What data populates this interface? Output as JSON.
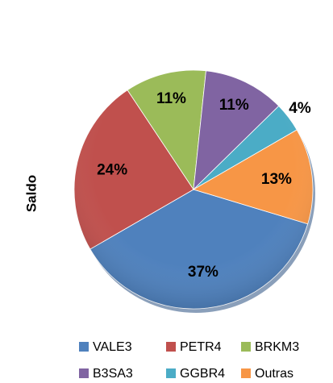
{
  "chart_data": {
    "type": "pie",
    "ylabel": "Saldo",
    "categories": [
      "VALE3",
      "PETR4",
      "BRKM3",
      "B3SA3",
      "GGBR4",
      "Outras"
    ],
    "values": [
      37,
      24,
      11,
      11,
      4,
      13
    ],
    "value_labels": [
      "37%",
      "24%",
      "11%",
      "11%",
      "4%",
      "13%"
    ],
    "colors": [
      "#4f81bd",
      "#c0504d",
      "#9bbb59",
      "#8064a2",
      "#4bacc6",
      "#f79646"
    ]
  }
}
